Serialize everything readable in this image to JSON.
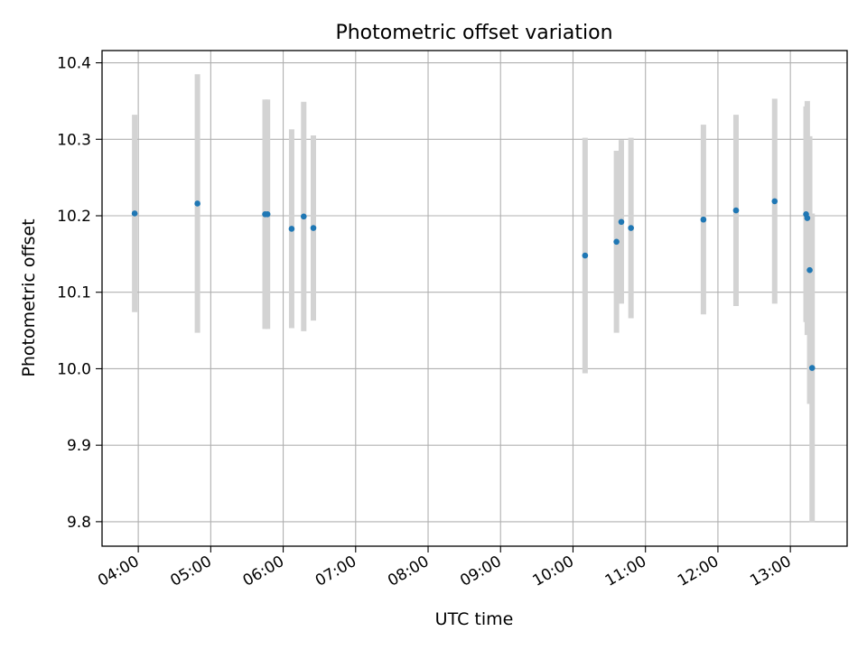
{
  "chart_data": {
    "type": "scatter",
    "title": "Photometric offset variation",
    "xlabel": "UTC time",
    "ylabel": "Photometric offset",
    "x_axis": "time",
    "xlim": [
      "03:30",
      "13:47"
    ],
    "ylim": [
      9.768,
      10.416
    ],
    "x_ticks": [
      "04:00",
      "05:00",
      "06:00",
      "07:00",
      "08:00",
      "09:00",
      "10:00",
      "11:00",
      "12:00",
      "13:00"
    ],
    "y_ticks": [
      "9.8",
      "9.9",
      "10.0",
      "10.1",
      "10.2",
      "10.3",
      "10.4"
    ],
    "grid": true,
    "legend": "none",
    "point_color": "#1f77b4",
    "errorbar_color": "#d3d3d3",
    "series": [
      {
        "points": [
          {
            "x": "03:57",
            "y": 10.203,
            "yerr": 0.129
          },
          {
            "x": "04:49",
            "y": 10.216,
            "yerr": 0.169
          },
          {
            "x": "05:45",
            "y": 10.202,
            "yerr": 0.15
          },
          {
            "x": "05:47",
            "y": 10.202,
            "yerr": 0.15
          },
          {
            "x": "06:07",
            "y": 10.183,
            "yerr": 0.13
          },
          {
            "x": "06:17",
            "y": 10.199,
            "yerr": 0.15
          },
          {
            "x": "06:25",
            "y": 10.184,
            "yerr": 0.121
          },
          {
            "x": "10:10",
            "y": 10.148,
            "yerr": 0.154
          },
          {
            "x": "10:36",
            "y": 10.166,
            "yerr": 0.119
          },
          {
            "x": "10:40",
            "y": 10.192,
            "yerr": 0.107
          },
          {
            "x": "10:48",
            "y": 10.184,
            "yerr": 0.118
          },
          {
            "x": "11:48",
            "y": 10.195,
            "yerr": 0.124
          },
          {
            "x": "12:15",
            "y": 10.207,
            "yerr": 0.125
          },
          {
            "x": "12:47",
            "y": 10.219,
            "yerr": 0.134
          },
          {
            "x": "13:13",
            "y": 10.202,
            "yerr": 0.141
          },
          {
            "x": "13:14",
            "y": 10.197,
            "yerr": 0.153
          },
          {
            "x": "13:16",
            "y": 10.129,
            "yerr": 0.175
          },
          {
            "x": "13:18",
            "y": 10.001,
            "yerr": 0.202
          }
        ]
      }
    ]
  }
}
